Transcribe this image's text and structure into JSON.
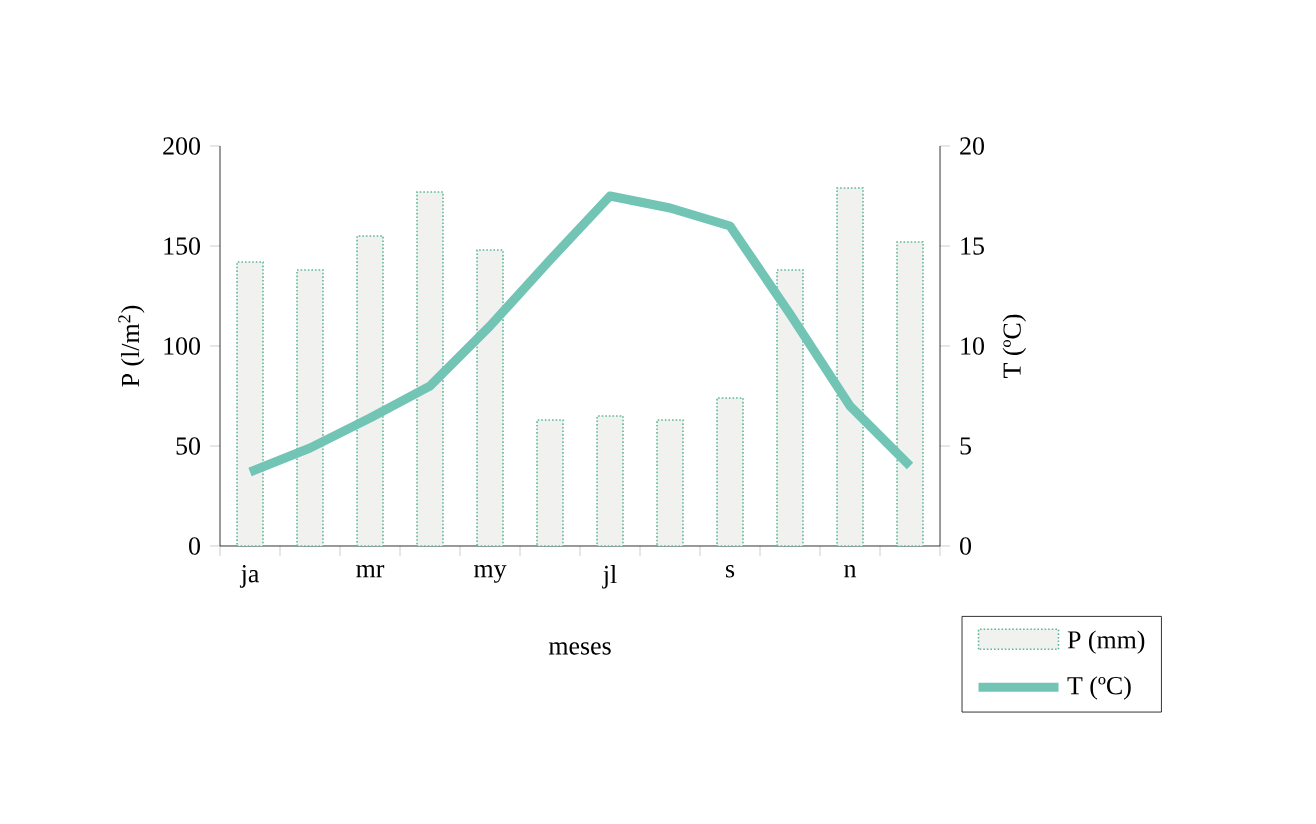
{
  "chart_data": {
    "type": "bar",
    "xlabel": "meses",
    "ylabel": "P (l/m$^{2}$)",
    "y2label": "T (ºC)",
    "categories": [
      "ja",
      null,
      "mr",
      null,
      "my",
      null,
      "jl",
      null,
      "s",
      null,
      "n",
      null
    ],
    "series": [
      {
        "name": "P (mm)",
        "color": "#f1f2f0",
        "values": [
          142,
          138,
          155,
          177,
          148,
          63,
          65,
          63,
          74,
          138,
          179,
          152
        ]
      },
      {
        "name": "T (ºC)",
        "type": "line",
        "axis": "y2",
        "color": "#72c4b4",
        "values": [
          3.7,
          4.9,
          6.4,
          8.0,
          11.0,
          14.3,
          17.5,
          16.9,
          16.0,
          11.6,
          7.0,
          4.0
        ]
      }
    ],
    "ylim": [
      0,
      200
    ],
    "yticks": [
      0,
      50,
      100,
      150,
      200
    ],
    "y2lim": [
      0,
      20
    ],
    "y2ticks": [
      0,
      5,
      10,
      15,
      20
    ],
    "grid": false,
    "legend": "bottom right",
    "marker": "none",
    "line_style": "solid"
  }
}
